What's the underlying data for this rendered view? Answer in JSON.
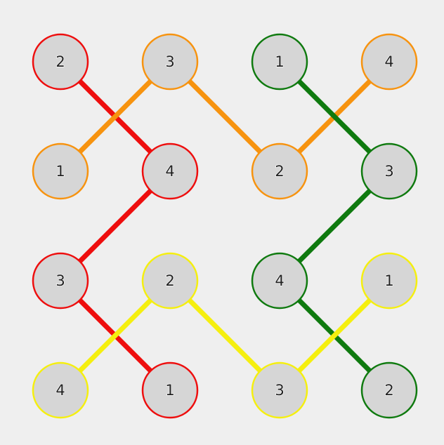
{
  "puzzle": {
    "colors": {
      "red": "#ee0e0e",
      "orange": "#f7930f",
      "green": "#0f7a0f",
      "yellow": "#f5ef0f",
      "node_fill": "#d6d6d6",
      "background": "#efefef"
    },
    "grid": {
      "rows": 4,
      "cols": 4
    },
    "nodes": [
      {
        "row": 0,
        "col": 0,
        "label": "2",
        "color": "red"
      },
      {
        "row": 0,
        "col": 1,
        "label": "3",
        "color": "orange"
      },
      {
        "row": 0,
        "col": 2,
        "label": "1",
        "color": "green"
      },
      {
        "row": 0,
        "col": 3,
        "label": "4",
        "color": "orange"
      },
      {
        "row": 1,
        "col": 0,
        "label": "1",
        "color": "orange"
      },
      {
        "row": 1,
        "col": 1,
        "label": "4",
        "color": "red"
      },
      {
        "row": 1,
        "col": 2,
        "label": "2",
        "color": "orange"
      },
      {
        "row": 1,
        "col": 3,
        "label": "3",
        "color": "green"
      },
      {
        "row": 2,
        "col": 0,
        "label": "3",
        "color": "red"
      },
      {
        "row": 2,
        "col": 1,
        "label": "2",
        "color": "yellow"
      },
      {
        "row": 2,
        "col": 2,
        "label": "4",
        "color": "green"
      },
      {
        "row": 2,
        "col": 3,
        "label": "1",
        "color": "yellow"
      },
      {
        "row": 3,
        "col": 0,
        "label": "4",
        "color": "yellow"
      },
      {
        "row": 3,
        "col": 1,
        "label": "1",
        "color": "red"
      },
      {
        "row": 3,
        "col": 2,
        "label": "3",
        "color": "yellow"
      },
      {
        "row": 3,
        "col": 3,
        "label": "2",
        "color": "green"
      }
    ],
    "paths": [
      {
        "color": "red",
        "cells": [
          [
            0,
            0
          ],
          [
            1,
            1
          ],
          [
            2,
            0
          ],
          [
            3,
            1
          ]
        ]
      },
      {
        "color": "orange",
        "cells": [
          [
            1,
            0
          ],
          [
            0,
            1
          ],
          [
            1,
            2
          ],
          [
            0,
            3
          ]
        ]
      },
      {
        "color": "green",
        "cells": [
          [
            0,
            2
          ],
          [
            1,
            3
          ],
          [
            2,
            2
          ],
          [
            3,
            3
          ]
        ]
      },
      {
        "color": "yellow",
        "cells": [
          [
            3,
            0
          ],
          [
            2,
            1
          ],
          [
            3,
            2
          ],
          [
            2,
            3
          ]
        ]
      }
    ]
  }
}
